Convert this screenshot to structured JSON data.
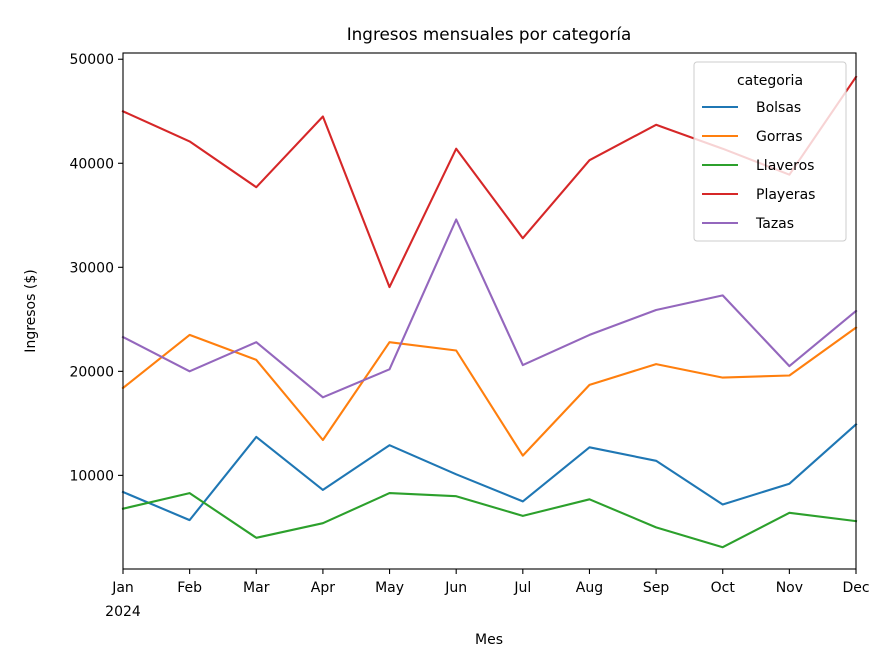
{
  "chart_data": {
    "type": "line",
    "title": "Ingresos mensuales por categoría",
    "xlabel": "Mes",
    "ylabel": "Ingresos ($)",
    "categories": [
      "Jan",
      "Feb",
      "Mar",
      "Apr",
      "May",
      "Jun",
      "Jul",
      "Aug",
      "Sep",
      "Oct",
      "Nov",
      "Dec"
    ],
    "year_label": "2024",
    "ylim": [
      1000,
      50600
    ],
    "yticks": [
      10000,
      20000,
      30000,
      40000,
      50000
    ],
    "ytick_labels": [
      "10000",
      "20000",
      "30000",
      "40000",
      "50000"
    ],
    "grid": false,
    "legend": {
      "title": "categoria",
      "placement": "top-right"
    },
    "series": [
      {
        "name": "Bolsas",
        "color": "#1f77b4",
        "values": [
          8400,
          5700,
          13700,
          8600,
          12900,
          10100,
          7500,
          12700,
          11400,
          7200,
          9200,
          14900
        ]
      },
      {
        "name": "Gorras",
        "color": "#ff7f0e",
        "values": [
          18400,
          23500,
          21100,
          13400,
          22800,
          22000,
          11900,
          18700,
          20700,
          19400,
          19600,
          24200
        ]
      },
      {
        "name": "Llaveros",
        "color": "#2ca02c",
        "values": [
          6800,
          8300,
          4000,
          5400,
          8300,
          8000,
          6100,
          7700,
          5000,
          3100,
          6400,
          5600
        ]
      },
      {
        "name": "Playeras",
        "color": "#d62728",
        "values": [
          45000,
          42100,
          37700,
          44500,
          28100,
          41400,
          32800,
          40300,
          43700,
          41400,
          38900,
          48300
        ]
      },
      {
        "name": "Tazas",
        "color": "#9467bd",
        "values": [
          23300,
          20000,
          22800,
          17500,
          20200,
          34600,
          20600,
          23500,
          25900,
          27300,
          20500,
          25800
        ]
      }
    ]
  }
}
